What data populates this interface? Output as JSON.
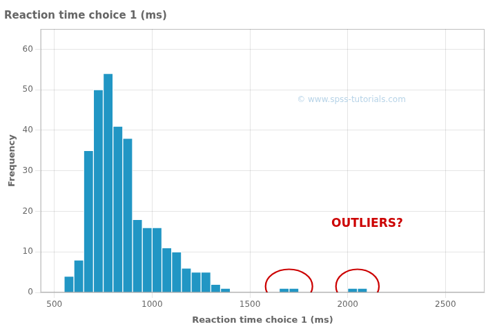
{
  "chart_data": {
    "type": "histogram",
    "title": "Reaction time choice 1 (ms)",
    "xlabel": "Reaction time choice 1 (ms)",
    "ylabel": "Frequency",
    "x": [
      550,
      600,
      650,
      700,
      750,
      800,
      850,
      900,
      950,
      1000,
      1050,
      1100,
      1150,
      1200,
      1250,
      1300,
      1350,
      1650,
      1700,
      2000,
      2050
    ],
    "values": [
      4,
      8,
      35,
      50,
      54,
      41,
      38,
      18,
      16,
      16,
      11,
      10,
      6,
      5,
      5,
      2,
      1,
      1,
      1,
      1,
      1
    ],
    "bin_width": 50,
    "color": "#2196c4",
    "xlim": [
      430,
      2700
    ],
    "ylim": [
      0,
      65
    ],
    "xticks": [
      500,
      1000,
      1500,
      2000,
      2500
    ],
    "yticks": [
      0,
      10,
      20,
      30,
      40,
      50,
      60
    ],
    "grid": true,
    "outlier_circles": [
      {
        "cx": 1700,
        "cy": 1.5,
        "rx": 120,
        "ry": 4.2,
        "color": "#cc0000"
      },
      {
        "cx": 2050,
        "cy": 1.5,
        "rx": 110,
        "ry": 4.2,
        "color": "#cc0000"
      }
    ],
    "annotations": [
      {
        "text": "OUTLIERS?",
        "x": 2100,
        "y": 17,
        "color": "#cc0000"
      },
      {
        "text": "© www.spss-tutorials.com",
        "color": "#b8d4e8"
      }
    ]
  }
}
